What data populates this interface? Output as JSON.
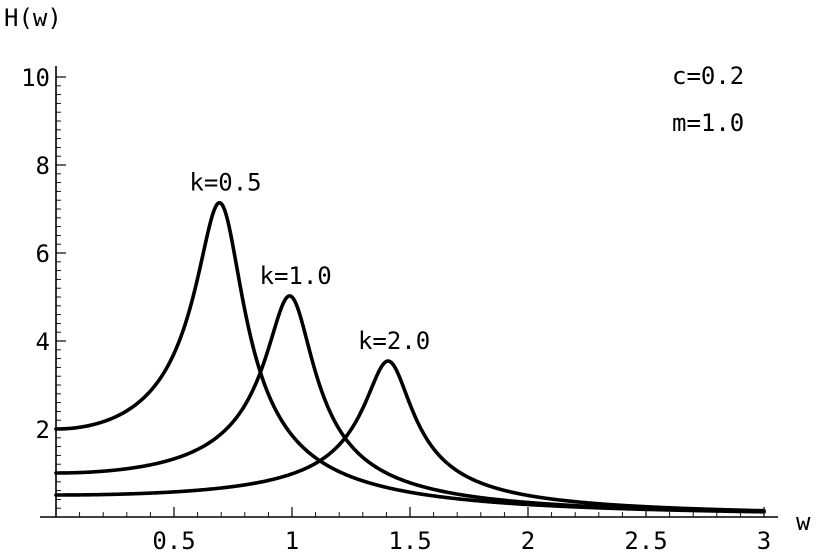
{
  "chart_data": {
    "type": "line",
    "title": "",
    "xlabel": "w",
    "ylabel": "H(w)",
    "xlim": [
      0,
      3
    ],
    "ylim": [
      0,
      10
    ],
    "x_ticks": [
      0.5,
      1,
      1.5,
      2,
      2.5,
      3
    ],
    "x_tick_labels": [
      "0.5",
      "1",
      "1.5",
      "2",
      "2.5",
      "3"
    ],
    "y_ticks": [
      2,
      4,
      6,
      8,
      10
    ],
    "y_tick_labels": [
      "2",
      "4",
      "6",
      "8",
      "10"
    ],
    "grid": false,
    "params": {
      "c": 0.2,
      "m": 1.0
    },
    "annotations": [
      "c=0.2",
      "m=1.0"
    ],
    "series": [
      {
        "label": "k=0.5",
        "k": 0.5,
        "x": [
          0,
          0.2,
          0.4,
          0.5,
          0.6,
          0.65,
          0.7,
          0.75,
          0.8,
          0.9,
          1.0,
          1.2,
          1.5,
          2.0,
          2.5,
          3.0
        ],
        "y": [
          2.0,
          2.17,
          2.91,
          3.85,
          5.71,
          6.69,
          7.09,
          6.51,
          5.35,
          3.45,
          2.22,
          1.11,
          0.55,
          0.28,
          0.17,
          0.12
        ]
      },
      {
        "label": "k=1.0",
        "k": 1.0,
        "x": [
          0,
          0.3,
          0.5,
          0.7,
          0.8,
          0.9,
          0.95,
          1.0,
          1.05,
          1.1,
          1.2,
          1.4,
          1.6,
          2.0,
          2.5,
          3.0
        ],
        "y": [
          1.0,
          1.09,
          1.31,
          1.85,
          2.52,
          3.74,
          4.5,
          5.0,
          4.63,
          3.82,
          2.42,
          1.06,
          0.62,
          0.33,
          0.19,
          0.12
        ]
      },
      {
        "label": "k=2.0",
        "k": 2.0,
        "x": [
          0,
          0.5,
          0.8,
          1.0,
          1.2,
          1.3,
          1.35,
          1.414,
          1.47,
          1.55,
          1.7,
          1.9,
          2.2,
          2.6,
          3.0
        ],
        "y": [
          0.5,
          0.57,
          0.73,
          0.98,
          1.64,
          2.33,
          2.87,
          3.54,
          3.08,
          2.1,
          1.17,
          0.66,
          0.36,
          0.21,
          0.14
        ]
      }
    ]
  }
}
